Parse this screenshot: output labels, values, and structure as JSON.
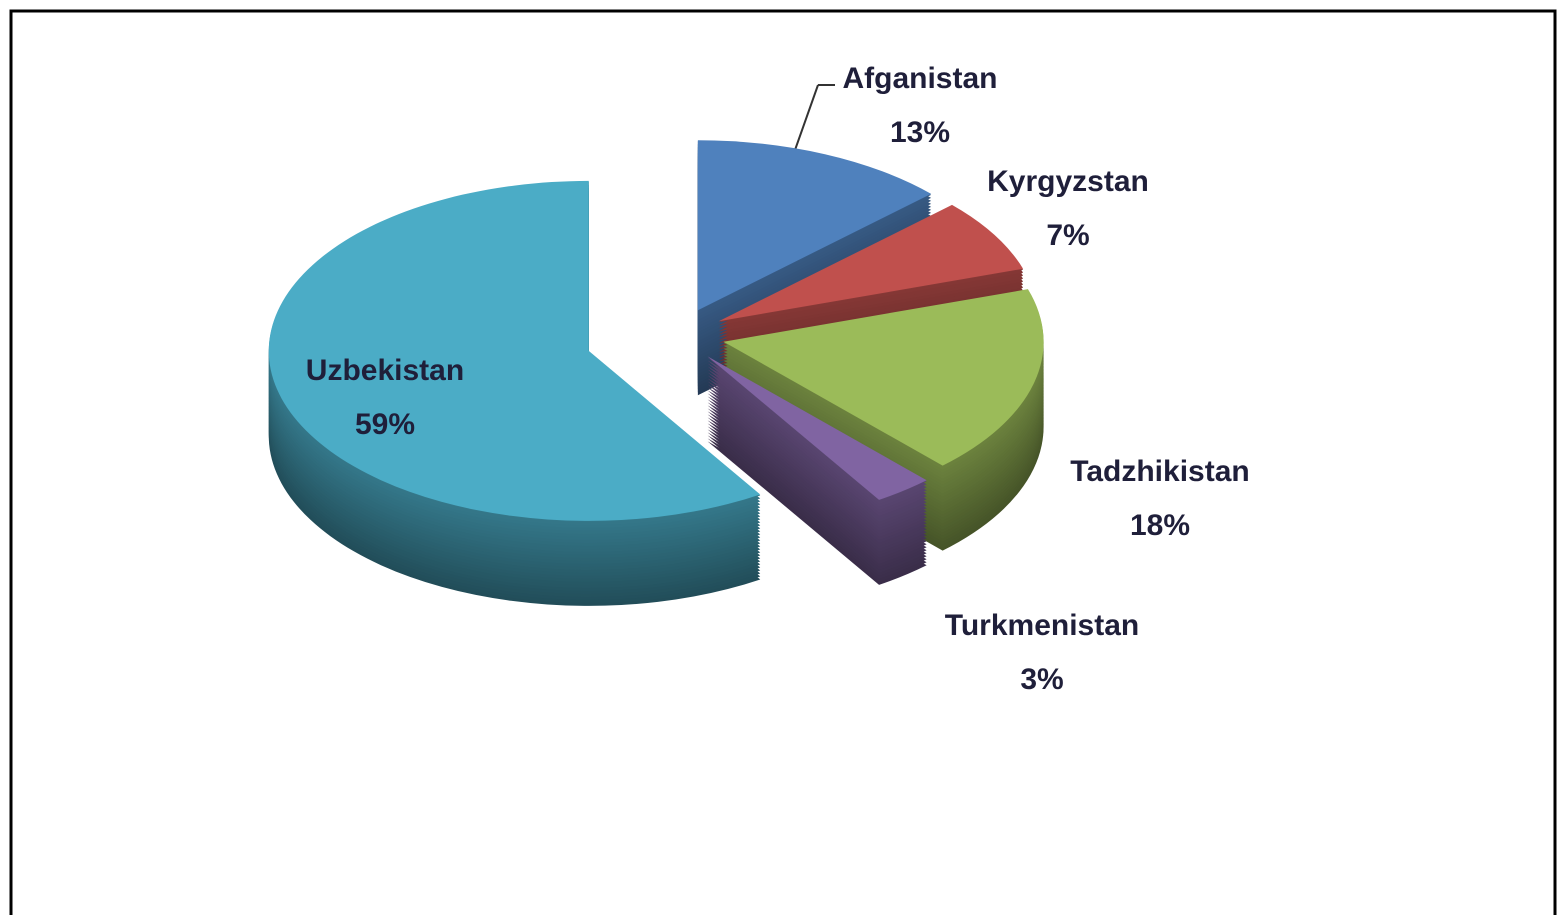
{
  "chart_data": {
    "type": "pie",
    "categories": [
      "Afganistan",
      "Kyrgyzstan",
      "Tadzhikistan",
      "Turkmenistan",
      "Uzbekistan"
    ],
    "values": [
      13,
      7,
      18,
      3,
      59
    ],
    "value_labels": [
      "13%",
      "7%",
      "18%",
      "3%",
      "59%"
    ],
    "colors": [
      "#4f81bd",
      "#c0504d",
      "#9bbb59",
      "#8064a2",
      "#4bacc6"
    ]
  }
}
